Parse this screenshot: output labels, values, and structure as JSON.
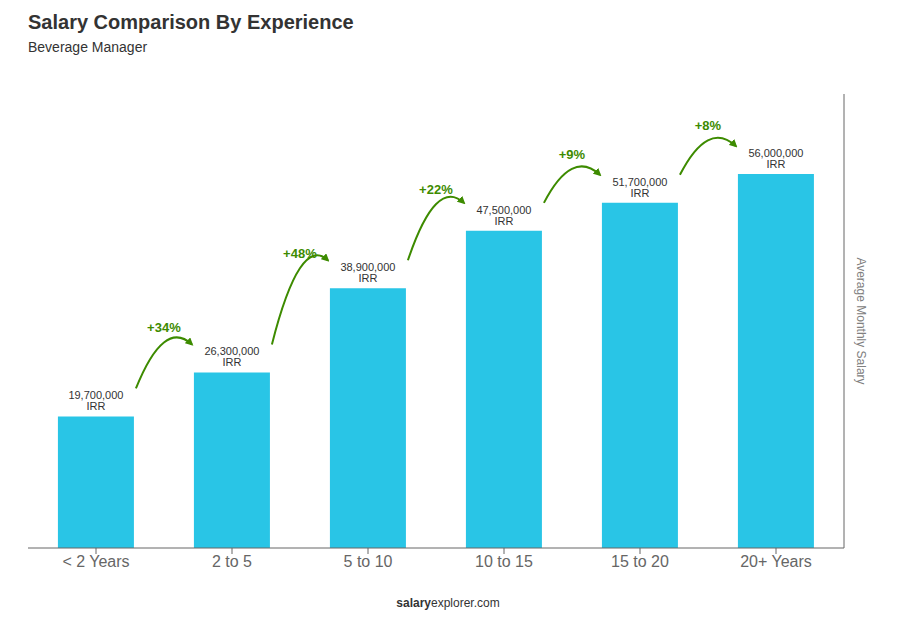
{
  "chart_data": {
    "type": "bar",
    "title": "Salary Comparison By Experience",
    "subtitle": "Beverage Manager",
    "categories": [
      "< 2 Years",
      "2 to 5",
      "5 to 10",
      "10 to 15",
      "15 to 20",
      "20+ Years"
    ],
    "values": [
      19700000,
      26300000,
      38900000,
      47500000,
      51700000,
      56000000
    ],
    "value_labels": [
      "19,700,000 IRR",
      "26,300,000 IRR",
      "38,900,000 IRR",
      "47,500,000 IRR",
      "51,700,000 IRR",
      "56,000,000 IRR"
    ],
    "data_labels": true,
    "color": "#29C5E6",
    "ylabel": "Average Monthly Salary",
    "ylim": [
      0,
      68000000
    ],
    "tick_labels": "x",
    "grid": false,
    "annotations": [
      {
        "text": "+34%",
        "from": "< 2 Years",
        "to": "2 to 5"
      },
      {
        "text": "+48%",
        "from": "2 to 5",
        "to": "5 to 10"
      },
      {
        "text": "+22%",
        "from": "5 to 10",
        "to": "10 to 15"
      },
      {
        "text": "+9%",
        "from": "10 to 15",
        "to": "15 to 20"
      },
      {
        "text": "+8%",
        "from": "15 to 20",
        "to": "20+ Years"
      }
    ],
    "footer": [
      "salary",
      "explorer.com"
    ]
  }
}
